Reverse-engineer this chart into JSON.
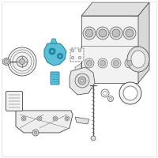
{
  "background_color": "#ffffff",
  "border_color": "#dddddd",
  "line_color": "#555555",
  "highlight_fill": "#5bbfd6",
  "highlight_edge": "#2a8aaa",
  "light_fill": "#f2f2f2",
  "mid_fill": "#e0e0e0",
  "dark_fill": "#c0c0c0",
  "fig_size": [
    2.0,
    2.0
  ],
  "dpi": 100
}
